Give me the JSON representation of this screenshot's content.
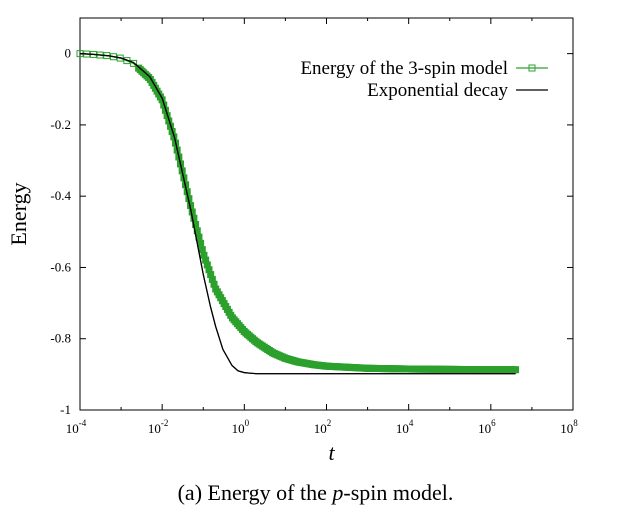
{
  "chart_data": {
    "type": "line",
    "xlabel": "t",
    "ylabel": "Energy",
    "x_scale": "log",
    "xlim": [
      0.0001,
      100000000
    ],
    "ylim": [
      -1,
      0.1
    ],
    "x_ticks": [
      {
        "base": "10",
        "exp": "-4"
      },
      {
        "base": "10",
        "exp": "-2"
      },
      {
        "base": "10",
        "exp": "0"
      },
      {
        "base": "10",
        "exp": "2"
      },
      {
        "base": "10",
        "exp": "4"
      },
      {
        "base": "10",
        "exp": "6"
      },
      {
        "base": "10",
        "exp": "8"
      }
    ],
    "y_ticks": [
      "0",
      "-0.2",
      "-0.4",
      "-0.6",
      "-0.8",
      "-1"
    ],
    "legend_position": "top-right",
    "series": [
      {
        "name": "Energy of the 3-spin model",
        "color": "#2ca02c",
        "marker": "square",
        "x": [
          0.0001,
          0.0002,
          0.0005,
          0.001,
          0.002,
          0.005,
          0.01,
          0.02,
          0.05,
          0.1,
          0.2,
          0.5,
          1,
          2,
          5,
          10,
          20,
          50,
          100,
          1000,
          10000,
          100000,
          1000000,
          4000000
        ],
        "y": [
          0.0,
          -0.002,
          -0.006,
          -0.013,
          -0.027,
          -0.07,
          -0.13,
          -0.24,
          -0.43,
          -0.56,
          -0.66,
          -0.74,
          -0.78,
          -0.81,
          -0.84,
          -0.855,
          -0.865,
          -0.873,
          -0.877,
          -0.883,
          -0.885,
          -0.886,
          -0.887,
          -0.887
        ]
      },
      {
        "name": "Exponential decay",
        "color": "#000000",
        "marker": "none",
        "x": [
          0.0001,
          0.0002,
          0.0005,
          0.001,
          0.002,
          0.005,
          0.01,
          0.02,
          0.05,
          0.1,
          0.15,
          0.2,
          0.3,
          0.5,
          0.7,
          1,
          1.5,
          2,
          5,
          100,
          10000,
          1000000,
          4000000
        ],
        "y": [
          0.0,
          -0.002,
          -0.006,
          -0.012,
          -0.025,
          -0.065,
          -0.125,
          -0.235,
          -0.44,
          -0.62,
          -0.71,
          -0.765,
          -0.83,
          -0.875,
          -0.89,
          -0.895,
          -0.897,
          -0.898,
          -0.898,
          -0.898,
          -0.898,
          -0.898,
          -0.898
        ]
      }
    ]
  },
  "caption": {
    "prefix": "(a) Energy of the ",
    "italic": "p",
    "suffix": "-spin model."
  }
}
